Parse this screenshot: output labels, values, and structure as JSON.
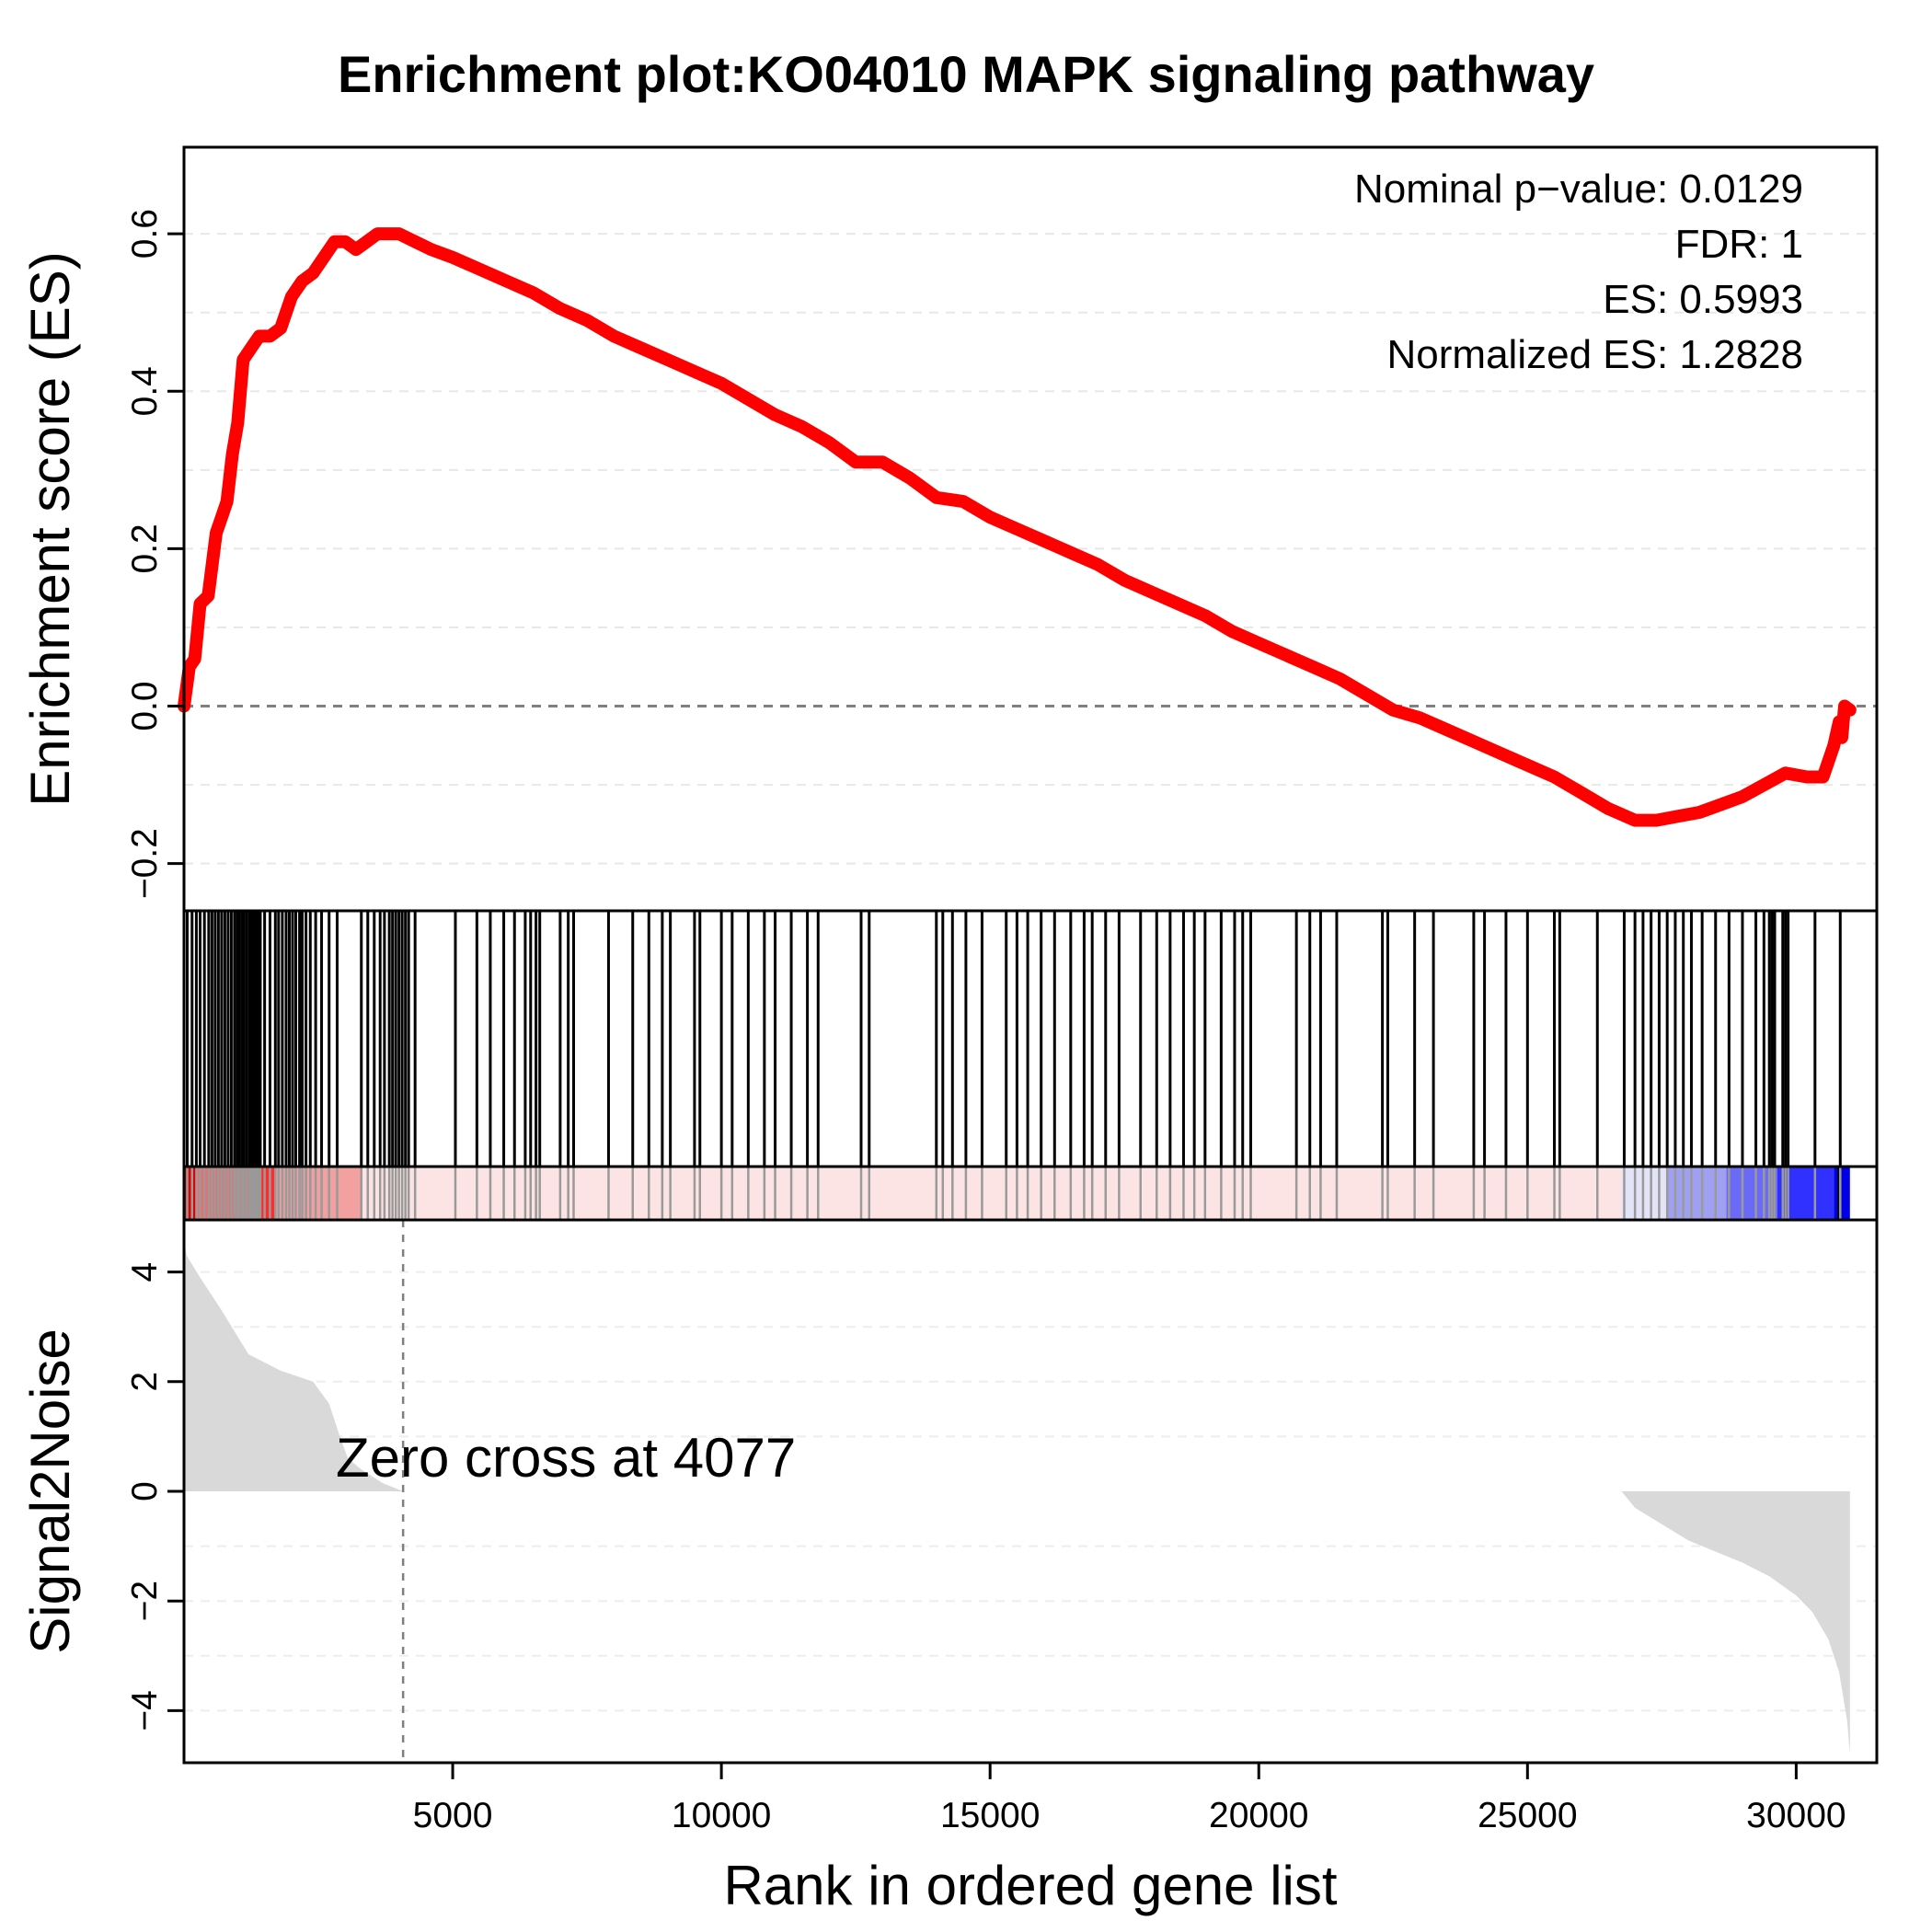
{
  "chart_data": {
    "type": "line",
    "title": "Enrichment plot:KO04010 MAPK signaling pathway",
    "xlabel": "Rank in ordered gene list",
    "x_ticks": [
      5000,
      10000,
      15000,
      20000,
      25000,
      30000
    ],
    "xlim": [
      0,
      31500
    ],
    "n_genes": 31000,
    "stats": [
      "Nominal p−value: 0.0129",
      "FDR: 1",
      "ES: 0.5993",
      "Normalized ES: 1.2828"
    ],
    "es_panel": {
      "ylabel": "Enrichment score (ES)",
      "ylim": [
        -0.26,
        0.71
      ],
      "y_ticks": [
        -0.2,
        0.0,
        0.2,
        0.4,
        0.6
      ],
      "y_tick_labels": [
        "−0.2",
        "0.0",
        "0.2",
        "0.4",
        "0.6"
      ],
      "line_color": "#ff0000",
      "reference_line": 0.0,
      "series": [
        {
          "x": [
            0,
            100,
            200,
            300,
            450,
            600,
            700,
            800,
            900,
            1000,
            1100,
            1200,
            1300,
            1400,
            1600,
            1800,
            2000,
            2200,
            2400,
            2600,
            2800,
            3000,
            3200,
            3400,
            3600,
            3800,
            4000,
            4300,
            4600,
            5000,
            5500,
            6000,
            6500,
            7000,
            7500,
            8000,
            8500,
            9000,
            9500,
            10000,
            10500,
            11000,
            11500,
            12000,
            12500,
            13000,
            13500,
            14000,
            14500,
            15000,
            15500,
            16000,
            16500,
            17000,
            17500,
            18000,
            18500,
            19000,
            19500,
            20000,
            20500,
            21000,
            21500,
            22000,
            22500,
            23000,
            23500,
            24000,
            24500,
            25000,
            25500,
            26000,
            26500,
            27000,
            27400,
            27800,
            28200,
            28600,
            29000,
            29400,
            29800,
            30200,
            30500,
            30700,
            30800,
            30850,
            30900,
            31000
          ],
          "y": [
            0.0,
            0.05,
            0.06,
            0.13,
            0.14,
            0.22,
            0.24,
            0.26,
            0.32,
            0.36,
            0.44,
            0.45,
            0.46,
            0.47,
            0.47,
            0.48,
            0.52,
            0.54,
            0.55,
            0.57,
            0.59,
            0.59,
            0.58,
            0.59,
            0.6,
            0.6,
            0.6,
            0.59,
            0.58,
            0.57,
            0.555,
            0.54,
            0.525,
            0.505,
            0.49,
            0.47,
            0.455,
            0.44,
            0.425,
            0.41,
            0.39,
            0.37,
            0.355,
            0.335,
            0.31,
            0.31,
            0.29,
            0.265,
            0.26,
            0.24,
            0.225,
            0.21,
            0.195,
            0.18,
            0.16,
            0.145,
            0.13,
            0.115,
            0.095,
            0.08,
            0.065,
            0.05,
            0.035,
            0.015,
            -0.005,
            -0.015,
            -0.03,
            -0.045,
            -0.06,
            -0.075,
            -0.09,
            -0.11,
            -0.13,
            -0.145,
            -0.145,
            -0.14,
            -0.135,
            -0.125,
            -0.115,
            -0.1,
            -0.085,
            -0.09,
            -0.09,
            -0.05,
            -0.02,
            -0.04,
            0.0,
            -0.005
          ]
        }
      ]
    },
    "hits_panel": {
      "hit_ranks": [
        60,
        150,
        230,
        300,
        380,
        460,
        520,
        580,
        640,
        700,
        760,
        820,
        880,
        940,
        990,
        1030,
        1080,
        1120,
        1170,
        1220,
        1260,
        1300,
        1340,
        1380,
        1420,
        1500,
        1600,
        1700,
        1760,
        1830,
        1900,
        1960,
        2020,
        2080,
        2150,
        2200,
        2270,
        2350,
        2450,
        2560,
        2700,
        2850,
        3300,
        3420,
        3540,
        3650,
        3730,
        3820,
        3880,
        3940,
        4000,
        4060,
        4120,
        4180,
        4300,
        5050,
        5450,
        5700,
        5950,
        6150,
        6350,
        6450,
        6550,
        6620,
        7000,
        7150,
        7250,
        7900,
        8350,
        8650,
        8900,
        9050,
        9500,
        9600,
        10000,
        10200,
        10500,
        10800,
        11000,
        11300,
        11600,
        11800,
        12600,
        12750,
        14000,
        14120,
        14300,
        14550,
        14850,
        15300,
        15500,
        15700,
        15950,
        16200,
        16500,
        16750,
        16900,
        17150,
        17400,
        17800,
        18100,
        18350,
        18600,
        18800,
        19000,
        19300,
        19550,
        19700,
        19850,
        20700,
        20950,
        21150,
        21450,
        22300,
        22400,
        22900,
        23250,
        24000,
        24200,
        24600,
        25000,
        25500,
        25600,
        26300,
        26800,
        27000,
        27150,
        27300,
        27450,
        27600,
        27750,
        27900,
        28050,
        28250,
        28500,
        28750,
        29000,
        29250,
        29400,
        29500,
        29550,
        29600,
        29750,
        29800,
        29850,
        30350,
        30820
      ]
    },
    "color_strip": {
      "segments": [
        {
          "from": 0,
          "to": 250,
          "color": "#e00000"
        },
        {
          "from": 250,
          "to": 1300,
          "color": "#f26b6b"
        },
        {
          "from": 1300,
          "to": 1700,
          "color": "#ff2a2a"
        },
        {
          "from": 1700,
          "to": 3300,
          "color": "#f2a0a0"
        },
        {
          "from": 3300,
          "to": 26750,
          "color": "#fde4e4"
        },
        {
          "from": 26750,
          "to": 27600,
          "color": "#e4e4f8"
        },
        {
          "from": 27600,
          "to": 28700,
          "color": "#a0a0f2"
        },
        {
          "from": 28700,
          "to": 29650,
          "color": "#6a6af6"
        },
        {
          "from": 29650,
          "to": 30700,
          "color": "#3030ff"
        },
        {
          "from": 30700,
          "to": 31000,
          "color": "#0000e8"
        }
      ]
    },
    "metric_panel": {
      "ylabel": "Signal2Noise",
      "ylim": [
        -4.95,
        4.95
      ],
      "y_ticks": [
        -4,
        -2,
        0,
        2,
        4
      ],
      "y_tick_labels": [
        "−4",
        "−2",
        "0",
        "2",
        "4"
      ],
      "zero_cross_label": "Zero cross at 4077",
      "zero_cross_rank": 4077,
      "fill_color": "#d9d9d9",
      "profile": {
        "x": [
          0,
          50,
          300,
          700,
          1200,
          1800,
          2400,
          2700,
          2900,
          3050,
          3300,
          3700,
          4077,
          26750,
          27000,
          27500,
          28000,
          28500,
          29000,
          29500,
          30000,
          30300,
          30600,
          30800,
          30950,
          31000
        ],
        "y": [
          4.6,
          4.3,
          3.9,
          3.3,
          2.5,
          2.2,
          2.0,
          1.6,
          1.0,
          0.6,
          0.4,
          0.15,
          0.0,
          0.0,
          -0.3,
          -0.6,
          -0.9,
          -1.1,
          -1.3,
          -1.55,
          -1.9,
          -2.2,
          -2.7,
          -3.3,
          -4.2,
          -4.8
        ]
      }
    }
  }
}
